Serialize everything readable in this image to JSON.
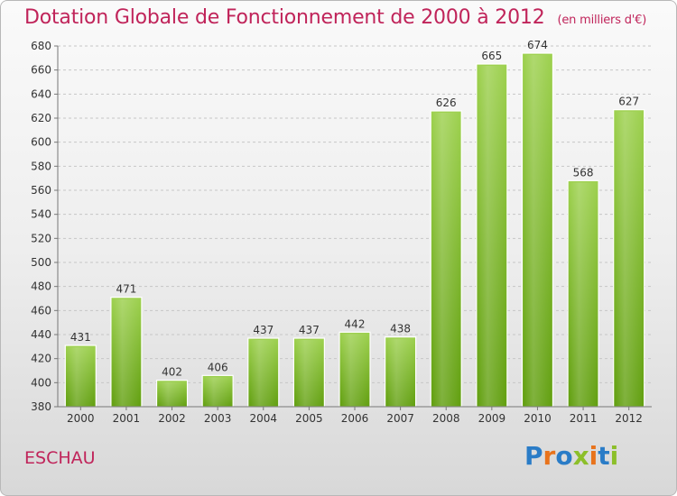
{
  "header": {
    "title": "Dotation Globale de Fonctionnement de 2000 à 2012",
    "unit": "(en milliers d'€)"
  },
  "footer": {
    "commune": "ESCHAU",
    "logo_letters": [
      "P",
      "r",
      "o",
      "x",
      "i",
      "t",
      "i"
    ]
  },
  "colors": {
    "bar_light": "#9ed150",
    "bar_dark": "#63a012",
    "title": "#c0245a"
  },
  "chart_data": {
    "type": "bar",
    "title": "Dotation Globale de Fonctionnement de 2000 à 2012",
    "subtitle": "(en milliers d'€)",
    "categories": [
      "2000",
      "2001",
      "2002",
      "2003",
      "2004",
      "2005",
      "2006",
      "2007",
      "2008",
      "2009",
      "2010",
      "2011",
      "2012"
    ],
    "values": [
      431,
      471,
      402,
      406,
      437,
      437,
      442,
      438,
      626,
      665,
      674,
      568,
      627
    ],
    "ylim": [
      380,
      680
    ],
    "yticks": [
      380,
      400,
      420,
      440,
      460,
      480,
      500,
      520,
      540,
      560,
      580,
      600,
      620,
      640,
      660,
      680
    ],
    "grid": true,
    "legend": "none"
  }
}
